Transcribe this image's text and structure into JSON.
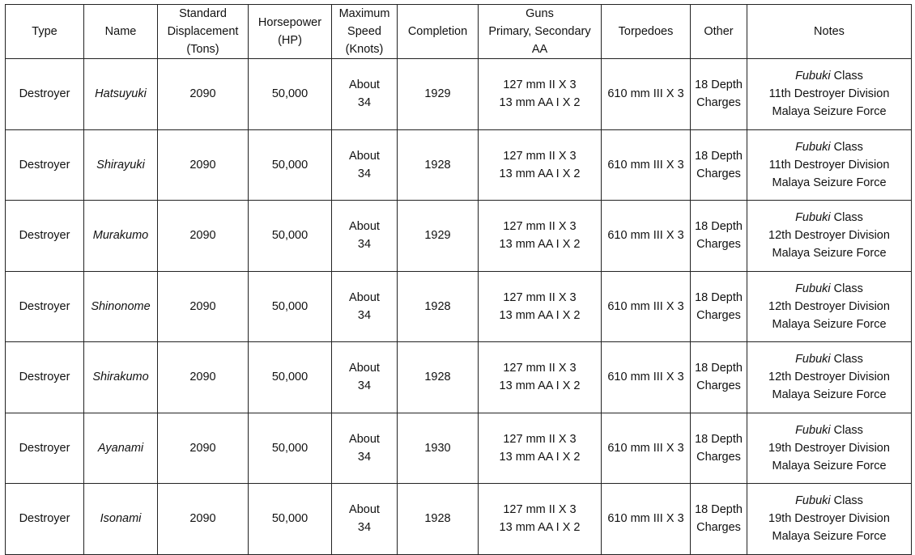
{
  "headers": [
    [
      "Type"
    ],
    [
      "Name"
    ],
    [
      "Standard",
      "Displacement",
      "(Tons)"
    ],
    [
      "Horsepower",
      "(HP)"
    ],
    [
      "Maximum",
      "Speed",
      "(Knots)"
    ],
    [
      "Completion"
    ],
    [
      "Guns",
      "Primary, Secondary",
      "AA"
    ],
    [
      "Torpedoes"
    ],
    [
      "Other"
    ],
    [
      "Notes"
    ]
  ],
  "rows": [
    {
      "type": "Destroyer",
      "name": "Hatsuyuki",
      "displacement": "2090",
      "horsepower": "50,000",
      "speed": [
        "About",
        "34"
      ],
      "completion": "1929",
      "guns": [
        "127 mm II X 3",
        "13 mm AA I X 2"
      ],
      "torpedoes": "610 mm III X 3",
      "other": [
        "18 Depth",
        "Charges"
      ],
      "notes": {
        "class_name": "Fubuki",
        "class_suffix": " Class",
        "division": "11th Destroyer Division",
        "force": "Malaya Seizure Force"
      }
    },
    {
      "type": "Destroyer",
      "name": "Shirayuki",
      "displacement": "2090",
      "horsepower": "50,000",
      "speed": [
        "About",
        "34"
      ],
      "completion": "1928",
      "guns": [
        "127 mm II X 3",
        "13 mm AA I X 2"
      ],
      "torpedoes": "610 mm III X 3",
      "other": [
        "18 Depth",
        "Charges"
      ],
      "notes": {
        "class_name": "Fubuki",
        "class_suffix": " Class",
        "division": "11th Destroyer Division",
        "force": "Malaya Seizure Force"
      }
    },
    {
      "type": "Destroyer",
      "name": "Murakumo",
      "displacement": "2090",
      "horsepower": "50,000",
      "speed": [
        "About",
        "34"
      ],
      "completion": "1929",
      "guns": [
        "127 mm II X 3",
        "13 mm AA I X 2"
      ],
      "torpedoes": "610 mm III X 3",
      "other": [
        "18 Depth",
        "Charges"
      ],
      "notes": {
        "class_name": "Fubuki",
        "class_suffix": " Class",
        "division": "12th Destroyer Division",
        "force": "Malaya Seizure Force"
      }
    },
    {
      "type": "Destroyer",
      "name": "Shinonome",
      "displacement": "2090",
      "horsepower": "50,000",
      "speed": [
        "About",
        "34"
      ],
      "completion": "1928",
      "guns": [
        "127 mm II X 3",
        "13 mm AA I X 2"
      ],
      "torpedoes": "610 mm III X 3",
      "other": [
        "18 Depth",
        "Charges"
      ],
      "notes": {
        "class_name": "Fubuki",
        "class_suffix": " Class",
        "division": "12th Destroyer Division",
        "force": "Malaya Seizure Force"
      }
    },
    {
      "type": "Destroyer",
      "name": "Shirakumo",
      "displacement": "2090",
      "horsepower": "50,000",
      "speed": [
        "About",
        "34"
      ],
      "completion": "1928",
      "guns": [
        "127 mm II X 3",
        "13 mm AA I X 2"
      ],
      "torpedoes": "610 mm III X 3",
      "other": [
        "18 Depth",
        "Charges"
      ],
      "notes": {
        "class_name": "Fubuki",
        "class_suffix": " Class",
        "division": "12th Destroyer Division",
        "force": "Malaya Seizure Force"
      }
    },
    {
      "type": "Destroyer",
      "name": "Ayanami",
      "displacement": "2090",
      "horsepower": "50,000",
      "speed": [
        "About",
        "34"
      ],
      "completion": "1930",
      "guns": [
        "127 mm II X 3",
        "13 mm AA I X 2"
      ],
      "torpedoes": "610 mm III X 3",
      "other": [
        "18 Depth",
        "Charges"
      ],
      "notes": {
        "class_name": "Fubuki",
        "class_suffix": " Class",
        "division": "19th Destroyer Division",
        "force": "Malaya Seizure Force"
      }
    },
    {
      "type": "Destroyer",
      "name": "Isonami",
      "displacement": "2090",
      "horsepower": "50,000",
      "speed": [
        "About",
        "34"
      ],
      "completion": "1928",
      "guns": [
        "127 mm II X 3",
        "13 mm AA I X 2"
      ],
      "torpedoes": "610 mm III X 3",
      "other": [
        "18 Depth",
        "Charges"
      ],
      "notes": {
        "class_name": "Fubuki",
        "class_suffix": " Class",
        "division": "19th Destroyer Division",
        "force": "Malaya Seizure Force"
      }
    }
  ]
}
